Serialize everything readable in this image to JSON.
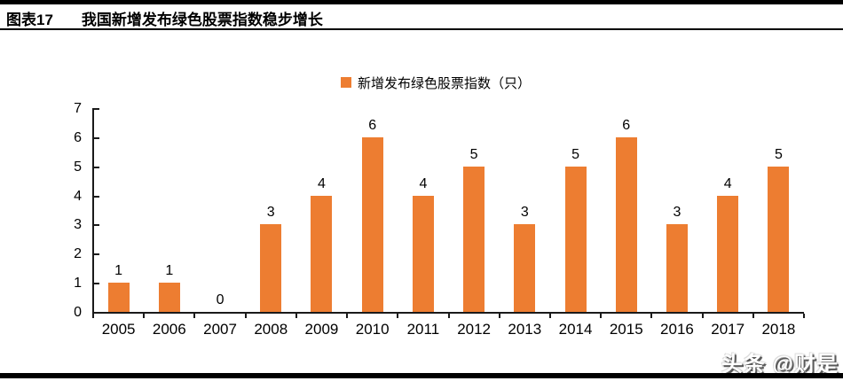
{
  "header": {
    "figure_label": "图表17",
    "title": "我国新增发布绿色股票指数稳步增长"
  },
  "chart_data": {
    "type": "bar",
    "title": "",
    "categories": [
      "2005",
      "2006",
      "2007",
      "2008",
      "2009",
      "2010",
      "2011",
      "2012",
      "2013",
      "2014",
      "2015",
      "2016",
      "2017",
      "2018"
    ],
    "values": [
      1,
      1,
      0,
      3,
      4,
      6,
      4,
      5,
      3,
      5,
      6,
      3,
      4,
      5
    ],
    "legend": [
      "新增发布绿色股票指数（只）"
    ],
    "legend_position": "top-center",
    "xlabel": "",
    "ylabel": "",
    "ylim": [
      0,
      7
    ],
    "ytick_step": 1,
    "yticks": [
      0,
      1,
      2,
      3,
      4,
      5,
      6,
      7
    ],
    "grid": false,
    "bar_color": "#ED7D31",
    "axis_color": "#1a1a1a",
    "label_color": "#000000"
  },
  "watermark": {
    "text": "头条 @财是"
  }
}
